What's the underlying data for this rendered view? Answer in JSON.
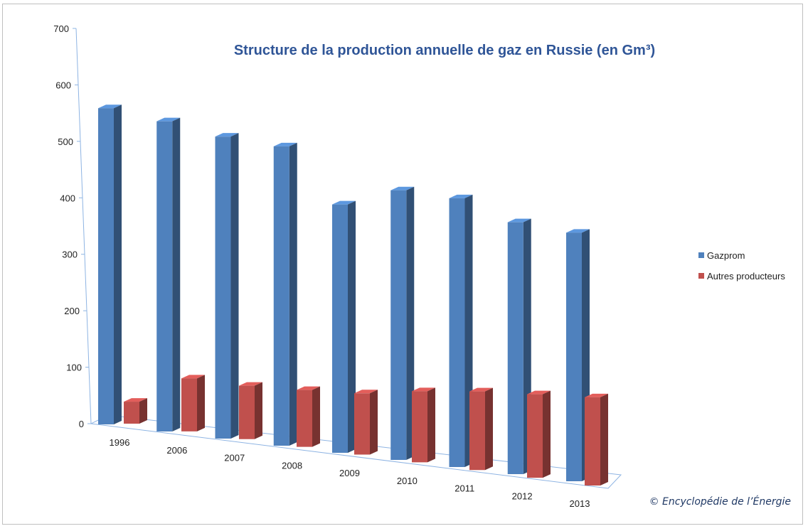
{
  "chart_data": {
    "type": "bar",
    "title": "Structure de la production annuelle de gaz en Russie (en Gm³)",
    "categories": [
      "1996",
      "2006",
      "2007",
      "2008",
      "2009",
      "2010",
      "2011",
      "2012",
      "2013"
    ],
    "series": [
      {
        "name": "Gazprom",
        "color": "#4f81bd",
        "values": [
          560,
          556,
          548,
          550,
          462,
          508,
          513,
          487,
          487
        ]
      },
      {
        "name": "Autres producteurs",
        "color": "#c0504d",
        "values": [
          41,
          100,
          102,
          110,
          120,
          141,
          158,
          170,
          182
        ]
      }
    ],
    "ylim": [
      0,
      700
    ],
    "yticks": [
      0,
      100,
      200,
      300,
      400,
      500,
      600,
      700
    ],
    "xlabel": "",
    "ylabel": "",
    "legend": "right",
    "grid": false
  },
  "credit": "© Encyclopédie de l’Énergie"
}
